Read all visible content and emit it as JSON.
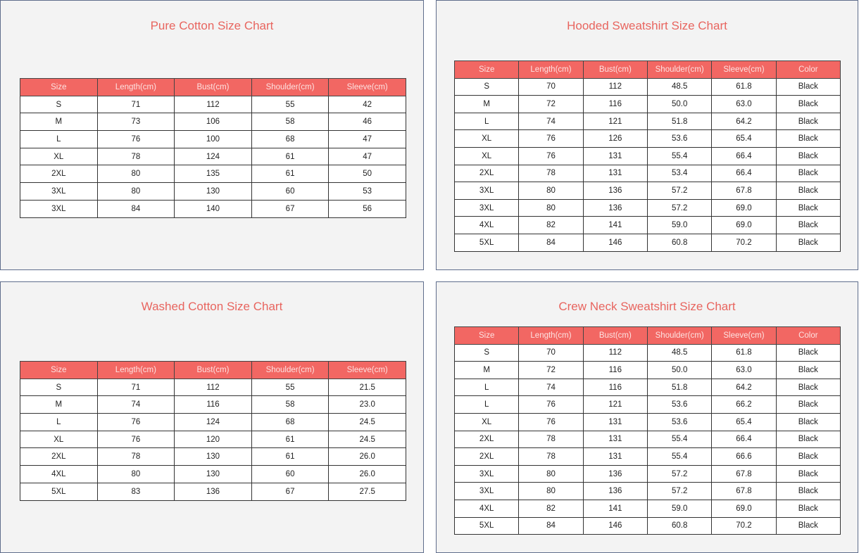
{
  "charts": [
    {
      "title": "Pure Cotton Size Chart",
      "headers": [
        "Size",
        "Length(cm)",
        "Bust(cm)",
        "Shoulder(cm)",
        "Sleeve(cm)"
      ],
      "rows": [
        [
          "S",
          "71",
          "112",
          "55",
          "42"
        ],
        [
          "M",
          "73",
          "106",
          "58",
          "46"
        ],
        [
          "L",
          "76",
          "100",
          "68",
          "47"
        ],
        [
          "XL",
          "78",
          "124",
          "61",
          "47"
        ],
        [
          "2XL",
          "80",
          "135",
          "61",
          "50"
        ],
        [
          "3XL",
          "80",
          "130",
          "60",
          "53"
        ],
        [
          "3XL",
          "84",
          "140",
          "67",
          "56"
        ]
      ]
    },
    {
      "title": "Hooded Sweatshirt Size Chart",
      "headers": [
        "Size",
        "Length(cm)",
        "Bust(cm)",
        "Shoulder(cm)",
        "Sleeve(cm)",
        "Color"
      ],
      "rows": [
        [
          "S",
          "70",
          "112",
          "48.5",
          "61.8",
          "Black"
        ],
        [
          "M",
          "72",
          "116",
          "50.0",
          "63.0",
          "Black"
        ],
        [
          "L",
          "74",
          "121",
          "51.8",
          "64.2",
          "Black"
        ],
        [
          "XL",
          "76",
          "126",
          "53.6",
          "65.4",
          "Black"
        ],
        [
          "XL",
          "76",
          "131",
          "55.4",
          "66.4",
          "Black"
        ],
        [
          "2XL",
          "78",
          "131",
          "53.4",
          "66.4",
          "Black"
        ],
        [
          "3XL",
          "80",
          "136",
          "57.2",
          "67.8",
          "Black"
        ],
        [
          "3XL",
          "80",
          "136",
          "57.2",
          "69.0",
          "Black"
        ],
        [
          "4XL",
          "82",
          "141",
          "59.0",
          "69.0",
          "Black"
        ],
        [
          "5XL",
          "84",
          "146",
          "60.8",
          "70.2",
          "Black"
        ]
      ]
    },
    {
      "title": "Washed Cotton Size Chart",
      "headers": [
        "Size",
        "Length(cm)",
        "Bust(cm)",
        "Shoulder(cm)",
        "Sleeve(cm)"
      ],
      "rows": [
        [
          "S",
          "71",
          "112",
          "55",
          "21.5"
        ],
        [
          "M",
          "74",
          "116",
          "58",
          "23.0"
        ],
        [
          "L",
          "76",
          "124",
          "68",
          "24.5"
        ],
        [
          "XL",
          "76",
          "120",
          "61",
          "24.5"
        ],
        [
          "2XL",
          "78",
          "130",
          "61",
          "26.0"
        ],
        [
          "4XL",
          "80",
          "130",
          "60",
          "26.0"
        ],
        [
          "5XL",
          "83",
          "136",
          "67",
          "27.5"
        ]
      ]
    },
    {
      "title": "Crew Neck Sweatshirt Size Chart",
      "headers": [
        "Size",
        "Length(cm)",
        "Bust(cm)",
        "Shoulder(cm)",
        "Sleeve(cm)",
        "Color"
      ],
      "rows": [
        [
          "S",
          "70",
          "112",
          "48.5",
          "61.8",
          "Black"
        ],
        [
          "M",
          "72",
          "116",
          "50.0",
          "63.0",
          "Black"
        ],
        [
          "L",
          "74",
          "116",
          "51.8",
          "64.2",
          "Black"
        ],
        [
          "L",
          "76",
          "121",
          "53.6",
          "66.2",
          "Black"
        ],
        [
          "XL",
          "76",
          "131",
          "53.6",
          "65.4",
          "Black"
        ],
        [
          "2XL",
          "78",
          "131",
          "55.4",
          "66.4",
          "Black"
        ],
        [
          "2XL",
          "78",
          "131",
          "55.4",
          "66.6",
          "Black"
        ],
        [
          "3XL",
          "80",
          "136",
          "57.2",
          "67.8",
          "Black"
        ],
        [
          "3XL",
          "80",
          "136",
          "57.2",
          "67.8",
          "Black"
        ],
        [
          "4XL",
          "82",
          "141",
          "59.0",
          "69.0",
          "Black"
        ],
        [
          "5XL",
          "84",
          "146",
          "60.8",
          "70.2",
          "Black"
        ]
      ]
    }
  ],
  "colors": {
    "header_bg": "#f26763",
    "title": "#e8655f",
    "panel_border": "#5f6d8c"
  }
}
